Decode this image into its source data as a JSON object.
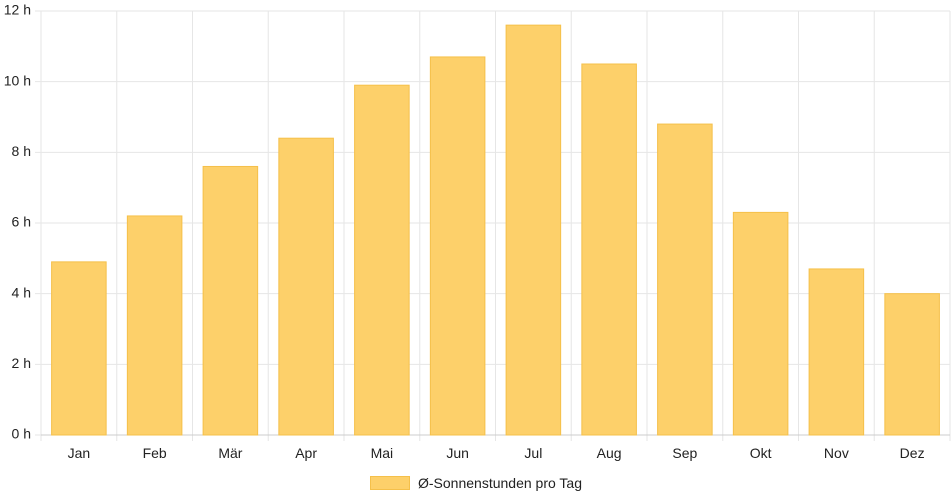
{
  "chart_data": {
    "type": "bar",
    "title": "",
    "xlabel": "",
    "ylabel": "",
    "categories": [
      "Jan",
      "Feb",
      "Mär",
      "Apr",
      "Mai",
      "Jun",
      "Jul",
      "Aug",
      "Sep",
      "Okt",
      "Nov",
      "Dez"
    ],
    "series": [
      {
        "name": "Ø-Sonnenstunden pro Tag",
        "values": [
          4.9,
          6.2,
          7.6,
          8.4,
          9.9,
          10.7,
          11.6,
          10.5,
          8.8,
          6.3,
          4.7,
          4.0
        ]
      }
    ],
    "ylim": [
      0,
      12
    ],
    "yticks": [
      0,
      2,
      4,
      6,
      8,
      10,
      12
    ],
    "ytick_suffix": " h",
    "grid": true,
    "legend_position": "bottom",
    "colors": {
      "bar_fill": "#fdd06a",
      "bar_stroke": "#f5c04a",
      "grid": "#e6e6e6",
      "axis": "#cccccc",
      "text": "#222222"
    }
  }
}
